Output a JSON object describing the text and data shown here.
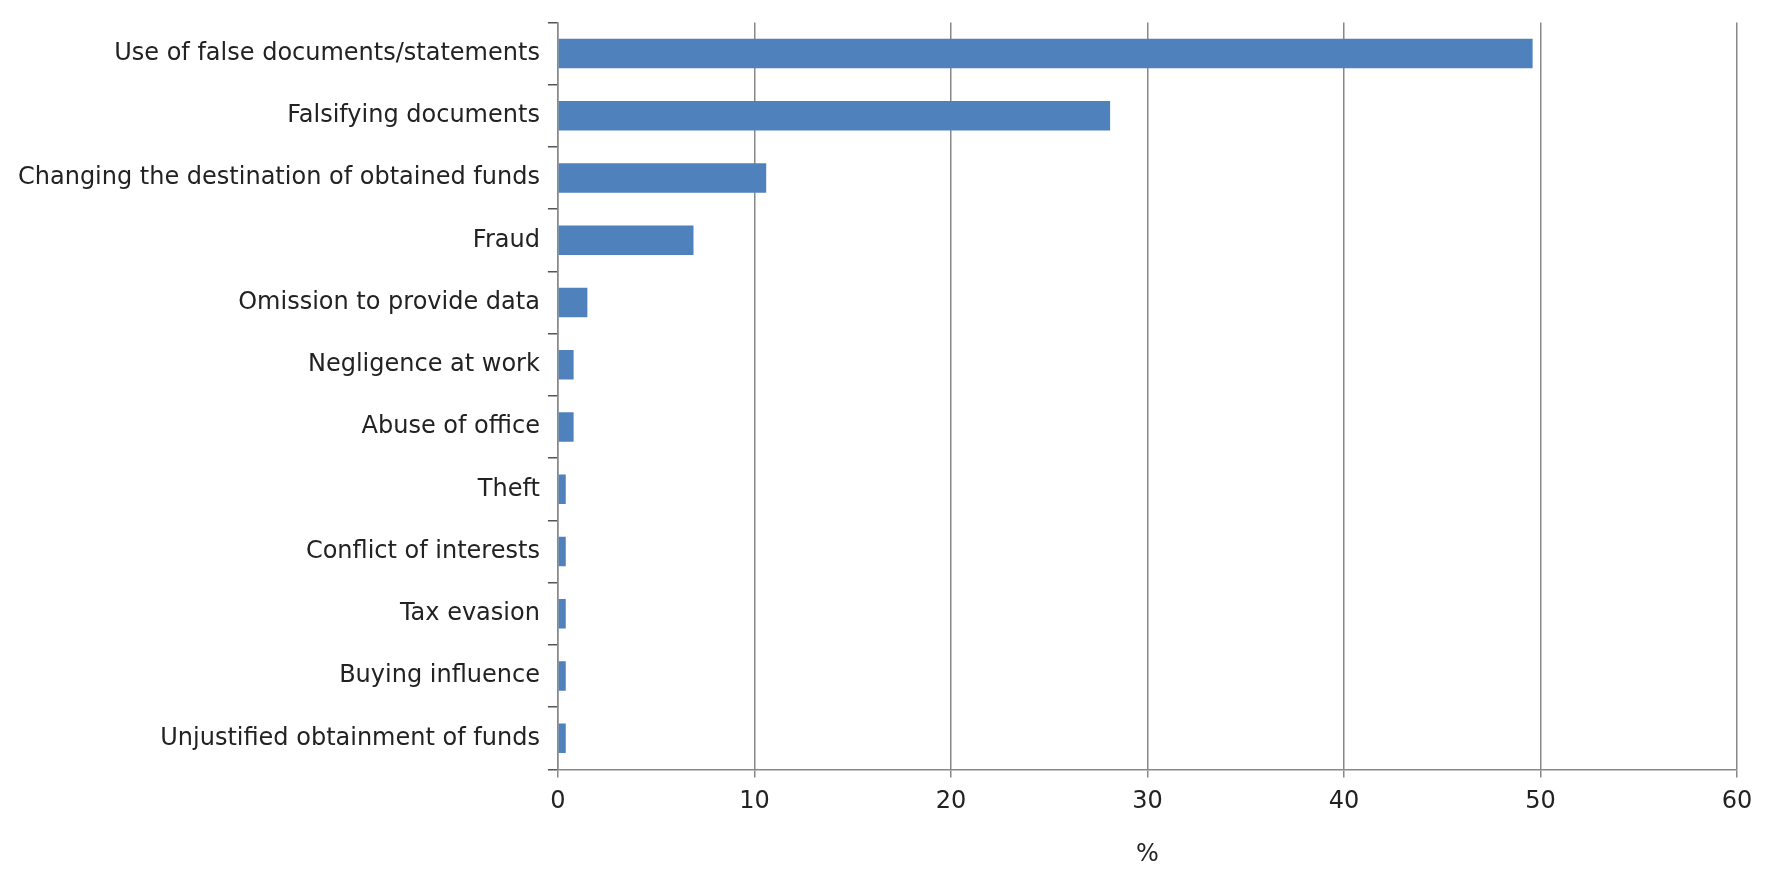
{
  "chart_data": {
    "type": "bar",
    "orientation": "horizontal",
    "xlabel": "%",
    "categories": [
      "Use of false documents/statements",
      "Falsifying documents",
      "Changing the destination of obtained funds",
      "Fraud",
      "Omission to provide data",
      "Negligence at work",
      "Abuse of office",
      "Theft",
      "Conflict of interests",
      "Tax evasion",
      "Buying influence",
      "Unjustified obtainment of funds"
    ],
    "values": [
      49.6,
      28.1,
      10.6,
      6.9,
      1.5,
      0.8,
      0.8,
      0.4,
      0.4,
      0.4,
      0.4,
      0.4
    ],
    "color": "#4f81bd",
    "xlim": [
      0,
      60
    ],
    "xticks": [
      0,
      10,
      20,
      30,
      40,
      50,
      60
    ],
    "grid": "x"
  }
}
